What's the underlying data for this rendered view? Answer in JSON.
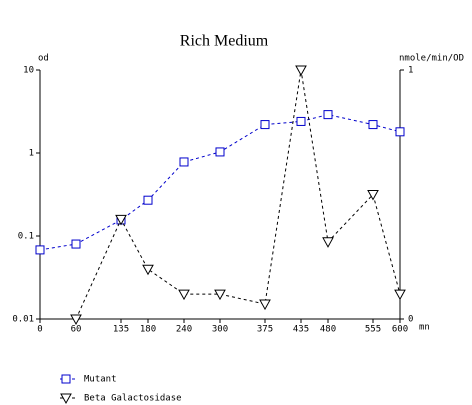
{
  "chart_data": {
    "type": "line",
    "title": "Rich Medium",
    "x_label": "mn",
    "y_label": "od",
    "y2_label": "nmole/min/OD",
    "x": [
      0,
      60,
      135,
      180,
      240,
      300,
      375,
      435,
      480,
      555,
      600
    ],
    "xlim": [
      0,
      600
    ],
    "xticks": [
      0,
      60,
      135,
      180,
      240,
      300,
      375,
      435,
      480,
      555,
      600
    ],
    "ylim": [
      0.01,
      10
    ],
    "yticks": [
      0.01,
      0.1,
      1,
      10
    ],
    "y_scale": "log",
    "y2lim": [
      0,
      1
    ],
    "y2ticks": [
      0,
      1
    ],
    "grid": false,
    "series": [
      {
        "name": "Mutant",
        "color": "#0000cc",
        "marker": "square",
        "values": [
          0.068,
          0.08,
          0.156,
          0.27,
          0.78,
          1.03,
          2.2,
          2.4,
          2.9,
          2.2,
          1.8
        ]
      },
      {
        "name": "Beta Galactosidase",
        "color": "#000000",
        "marker": "triangle-down",
        "axis": "y2",
        "values": [
          null,
          0,
          0.4,
          0.2,
          0.1,
          0.1,
          0.06,
          1.0,
          0.31,
          0.5,
          0.1
        ]
      }
    ]
  }
}
